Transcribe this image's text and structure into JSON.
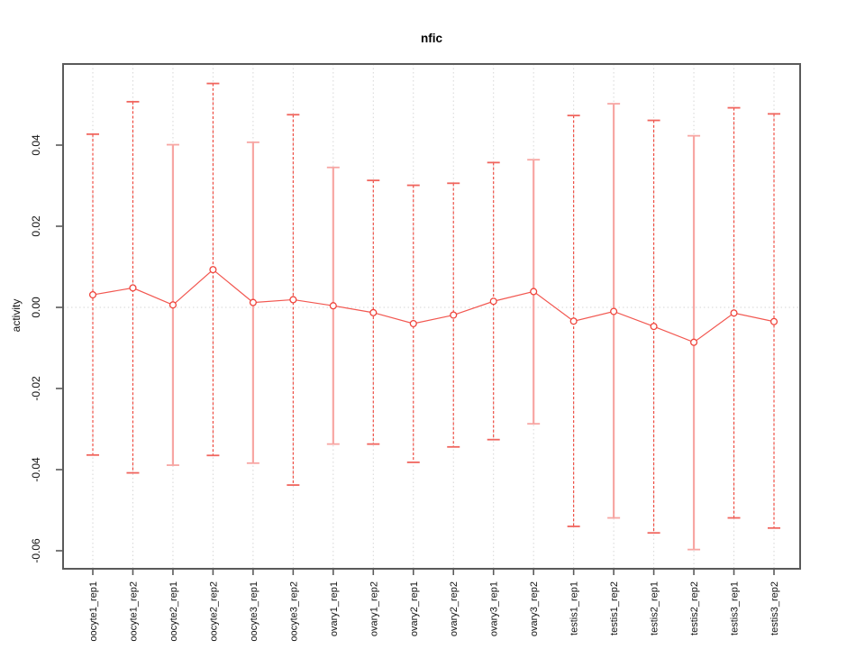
{
  "figure": {
    "background": "#ffffff"
  },
  "chart_data": {
    "type": "line",
    "subtype": "points-with-error-bars",
    "title": "nfic",
    "xlabel": "",
    "ylabel": "activity",
    "legend": "none",
    "grid": "vertical dotted gridline per category; dotted horizontal line at y=0",
    "ylim": [
      -0.0642,
      0.06
    ],
    "yticks": [
      {
        "value": 0.04,
        "label": "0.04"
      },
      {
        "value": 0.02,
        "label": "0.02"
      },
      {
        "value": 0.0,
        "label": "0.00"
      },
      {
        "value": -0.02,
        "label": "-0.02"
      },
      {
        "value": -0.04,
        "label": "-0.04"
      },
      {
        "value": -0.06,
        "label": "-0.06"
      }
    ],
    "categories": [
      "oocyte1_rep1",
      "oocyte1_rep2",
      "oocyte2_rep1",
      "oocyte2_rep2",
      "oocyte3_rep1",
      "oocyte3_rep2",
      "ovary1_rep1",
      "ovary1_rep2",
      "ovary2_rep1",
      "ovary2_rep2",
      "ovary3_rep1",
      "ovary3_rep2",
      "testis1_rep1",
      "testis1_rep2",
      "testis2_rep1",
      "testis2_rep2",
      "testis3_rep1",
      "testis3_rep2"
    ],
    "series": [
      {
        "name": "activity (center)",
        "values": [
          0.0031,
          0.0048,
          0.0006,
          0.0093,
          0.0012,
          0.0019,
          0.0004,
          -0.0013,
          -0.004,
          -0.0019,
          0.0015,
          0.0039,
          -0.0034,
          -0.001,
          -0.0047,
          -0.0086,
          -0.0014,
          -0.0035
        ]
      },
      {
        "name": "upper error bound",
        "values": [
          0.0427,
          0.0507,
          0.0401,
          0.0552,
          0.0407,
          0.0475,
          0.0345,
          0.0313,
          0.0301,
          0.0306,
          0.0357,
          0.0364,
          0.0473,
          0.0502,
          0.0461,
          0.0423,
          0.0492,
          0.0477
        ]
      },
      {
        "name": "lower error bound",
        "values": [
          -0.0364,
          -0.0408,
          -0.0389,
          -0.0365,
          -0.0384,
          -0.0438,
          -0.0337,
          -0.0337,
          -0.0382,
          -0.0344,
          -0.0326,
          -0.0287,
          -0.054,
          -0.0519,
          -0.0556,
          -0.0597,
          -0.0519,
          -0.0544
        ]
      }
    ],
    "bar_styles": [
      "dashed",
      "dashed",
      "solid",
      "dashed",
      "solid",
      "dashed",
      "solid",
      "dashed",
      "dashed",
      "dashed",
      "dashed",
      "solid",
      "dashed",
      "solid",
      "dashed",
      "solid",
      "dashed",
      "dashed"
    ],
    "colors": {
      "error_bar_dashed": "#ee4136",
      "error_bar_solid": "#f7a6a3",
      "error_bar_cap": "#f0655e",
      "center_line": "#f25750",
      "marker_stroke": "#ef453c",
      "marker_fill": "#ffffff",
      "gridline": "#d6d6d6",
      "frame": "#5a5a5a",
      "tick": "#5a5a5a",
      "text": "#111111"
    }
  }
}
